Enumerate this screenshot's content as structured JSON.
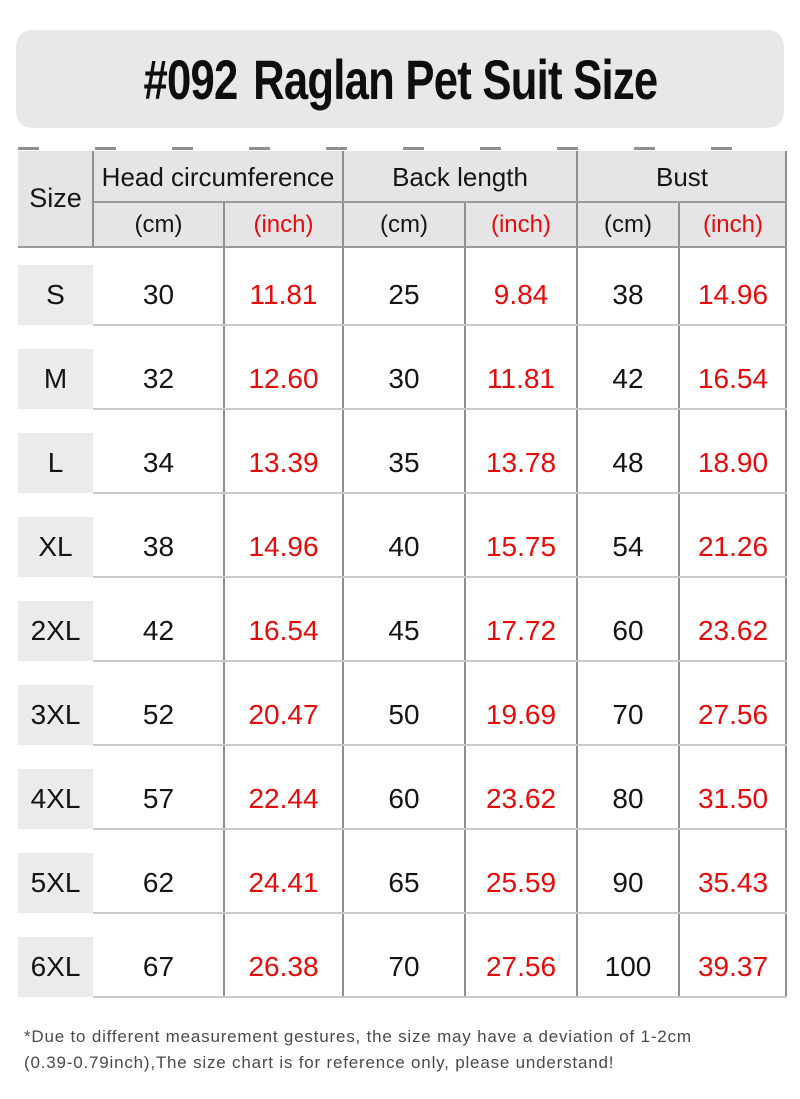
{
  "title": {
    "code": "#092",
    "name": "Raglan Pet Suit Size"
  },
  "table": {
    "size_header": "Size",
    "groups": [
      {
        "label": "Head circumference"
      },
      {
        "label": "Back length"
      },
      {
        "label": "Bust"
      }
    ],
    "unit_cm": "(cm)",
    "unit_inch": "(inch)",
    "rows": [
      {
        "size": "S",
        "head_cm": "30",
        "head_inch": "11.81",
        "back_cm": "25",
        "back_inch": "9.84",
        "bust_cm": "38",
        "bust_inch": "14.96"
      },
      {
        "size": "M",
        "head_cm": "32",
        "head_inch": "12.60",
        "back_cm": "30",
        "back_inch": "11.81",
        "bust_cm": "42",
        "bust_inch": "16.54"
      },
      {
        "size": "L",
        "head_cm": "34",
        "head_inch": "13.39",
        "back_cm": "35",
        "back_inch": "13.78",
        "bust_cm": "48",
        "bust_inch": "18.90"
      },
      {
        "size": "XL",
        "head_cm": "38",
        "head_inch": "14.96",
        "back_cm": "40",
        "back_inch": "15.75",
        "bust_cm": "54",
        "bust_inch": "21.26"
      },
      {
        "size": "2XL",
        "head_cm": "42",
        "head_inch": "16.54",
        "back_cm": "45",
        "back_inch": "17.72",
        "bust_cm": "60",
        "bust_inch": "23.62"
      },
      {
        "size": "3XL",
        "head_cm": "52",
        "head_inch": "20.47",
        "back_cm": "50",
        "back_inch": "19.69",
        "bust_cm": "70",
        "bust_inch": "27.56"
      },
      {
        "size": "4XL",
        "head_cm": "57",
        "head_inch": "22.44",
        "back_cm": "60",
        "back_inch": "23.62",
        "bust_cm": "80",
        "bust_inch": "31.50"
      },
      {
        "size": "5XL",
        "head_cm": "62",
        "head_inch": "24.41",
        "back_cm": "65",
        "back_inch": "25.59",
        "bust_cm": "90",
        "bust_inch": "35.43"
      },
      {
        "size": "6XL",
        "head_cm": "67",
        "head_inch": "26.38",
        "back_cm": "70",
        "back_inch": "27.56",
        "bust_cm": "100",
        "bust_inch": "39.37"
      }
    ]
  },
  "footer": {
    "line1": "*Due to different measurement gestures, the size may have a deviation of 1-2cm",
    "line2": "(0.39-0.79inch),The size chart is for reference only, please understand!"
  },
  "colors": {
    "accent_red": "#e60b0b",
    "banner_bg": "#e8e8ea",
    "header_bg": "#e5e5e7",
    "size_cell_bg": "#ebebee",
    "grid_dark": "#8f8f8f",
    "grid_light": "#cacaca"
  }
}
